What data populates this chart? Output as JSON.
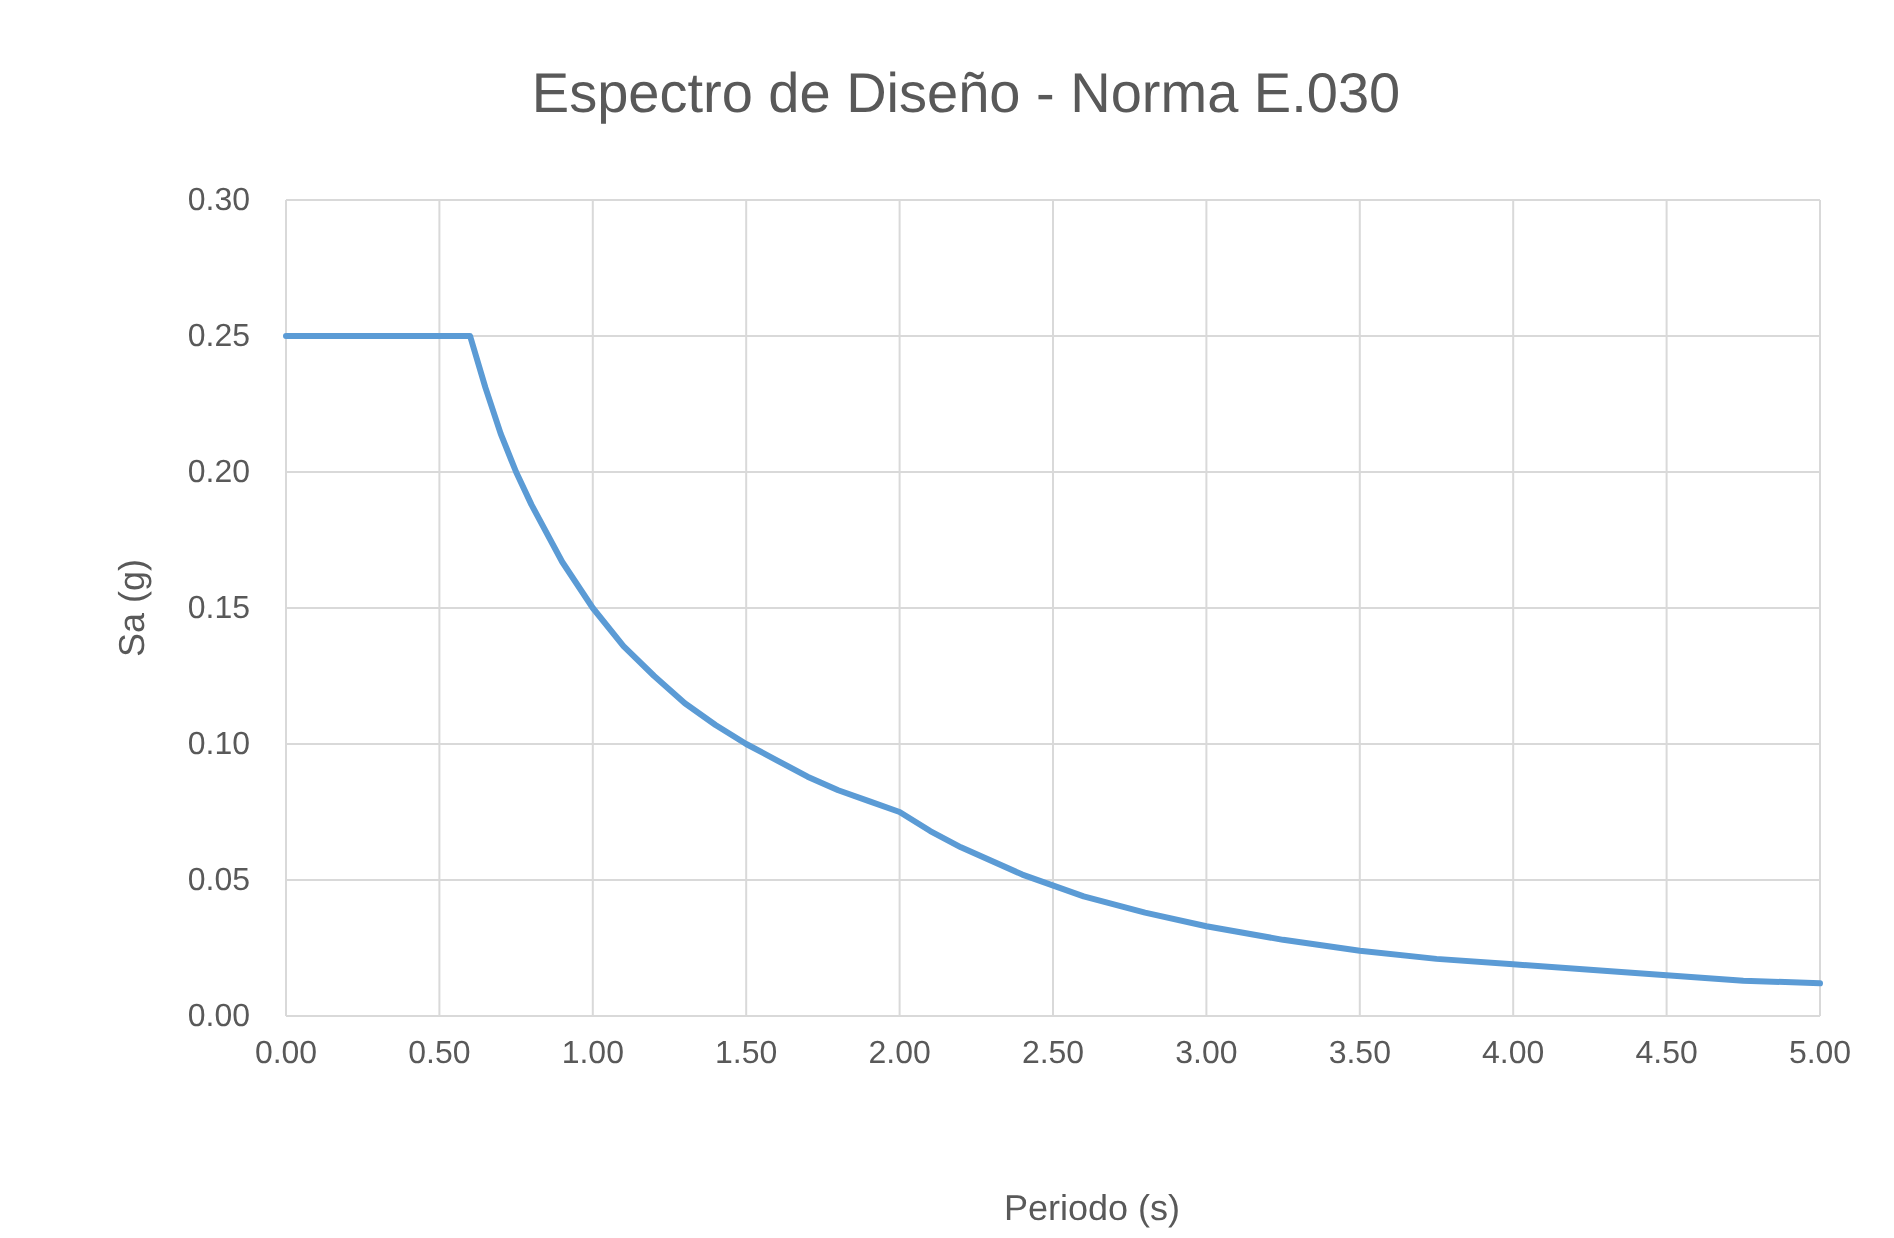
{
  "chart_data": {
    "type": "line",
    "title": "Espectro de Diseño - Norma E.030",
    "xlabel": "Periodo (s)",
    "ylabel": "Sa (g)",
    "x": [
      0,
      0.6,
      0.65,
      0.7,
      0.75,
      0.8,
      0.9,
      1.0,
      1.1,
      1.2,
      1.3,
      1.4,
      1.5,
      1.6,
      1.7,
      1.8,
      1.9,
      2.0,
      2.1,
      2.2,
      2.4,
      2.6,
      2.8,
      3.0,
      3.25,
      3.5,
      3.75,
      4.0,
      4.25,
      4.5,
      4.75,
      5.0
    ],
    "series": [
      {
        "color": "#5b9bd5",
        "values": [
          0.25,
          0.25,
          0.231,
          0.214,
          0.2,
          0.188,
          0.167,
          0.15,
          0.136,
          0.125,
          0.115,
          0.107,
          0.1,
          0.094,
          0.088,
          0.083,
          0.079,
          0.075,
          0.068,
          0.062,
          0.052,
          0.044,
          0.038,
          0.033,
          0.028,
          0.024,
          0.021,
          0.019,
          0.017,
          0.015,
          0.013,
          0.012
        ]
      }
    ],
    "xlim": [
      0,
      5
    ],
    "ylim": [
      0,
      0.3
    ],
    "xticks": [
      {
        "value": 0,
        "label": "0.00"
      },
      {
        "value": 0.5,
        "label": "0.50"
      },
      {
        "value": 1,
        "label": "1.00"
      },
      {
        "value": 1.5,
        "label": "1.50"
      },
      {
        "value": 2,
        "label": "2.00"
      },
      {
        "value": 2.5,
        "label": "2.50"
      },
      {
        "value": 3,
        "label": "3.00"
      },
      {
        "value": 3.5,
        "label": "3.50"
      },
      {
        "value": 4,
        "label": "4.00"
      },
      {
        "value": 4.5,
        "label": "4.50"
      },
      {
        "value": 5,
        "label": "5.00"
      }
    ],
    "yticks": [
      {
        "value": 0,
        "label": "0.00"
      },
      {
        "value": 0.05,
        "label": "0.05"
      },
      {
        "value": 0.1,
        "label": "0.10"
      },
      {
        "value": 0.15,
        "label": "0.15"
      },
      {
        "value": 0.2,
        "label": "0.20"
      },
      {
        "value": 0.25,
        "label": "0.25"
      },
      {
        "value": 0.3,
        "label": "0.30"
      }
    ],
    "grid": true,
    "line_style": "solid",
    "marker": "none"
  }
}
